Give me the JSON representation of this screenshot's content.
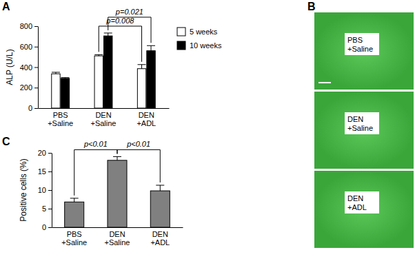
{
  "chart_data": [
    {
      "type": "bar",
      "title": "A",
      "y_label": "ALP (U/L)",
      "categories": [
        "PBS +Saline",
        "DEN +Saline",
        "DEN +ADL"
      ],
      "series": [
        {
          "name": "5 weeks",
          "color": "#ffffff",
          "values": [
            335,
            510,
            385
          ],
          "errors": [
            15,
            12,
            40
          ]
        },
        {
          "name": "10 weeks",
          "color": "#000000",
          "values": [
            290,
            705,
            560
          ],
          "errors": [
            8,
            28,
            50
          ]
        }
      ],
      "ylim": [
        0,
        800
      ],
      "yticks": [
        0,
        200,
        400,
        600,
        800
      ],
      "legend": "right",
      "annotations": [
        {
          "text": "p=0.008",
          "between": [
            "DEN +Saline",
            "DEN +ADL"
          ],
          "series": "5 weeks"
        },
        {
          "text": "p=0.021",
          "between": [
            "DEN +Saline",
            "DEN +ADL"
          ],
          "series": "10 weeks"
        }
      ]
    },
    {
      "type": "bar",
      "title": "C",
      "y_label": "Positive cells (%)",
      "categories": [
        "PBS +Saline",
        "DEN +Saline",
        "DEN +ADL"
      ],
      "values": [
        6.8,
        18,
        9.8
      ],
      "errors": [
        1.0,
        1.0,
        1.5
      ],
      "color": "#808080",
      "ylim": [
        0,
        20
      ],
      "yticks": [
        0,
        5,
        10,
        15,
        20
      ],
      "annotations": [
        {
          "text": "p<0.01",
          "between": [
            "PBS +Saline",
            "DEN +Saline"
          ]
        },
        {
          "text": "p<0.01",
          "between": [
            "DEN +Saline",
            "DEN +ADL"
          ]
        }
      ]
    }
  ],
  "image_panel": {
    "title": "B",
    "rows": [
      "PBS +Saline",
      "DEN +Saline",
      "DEN +ADL"
    ]
  }
}
